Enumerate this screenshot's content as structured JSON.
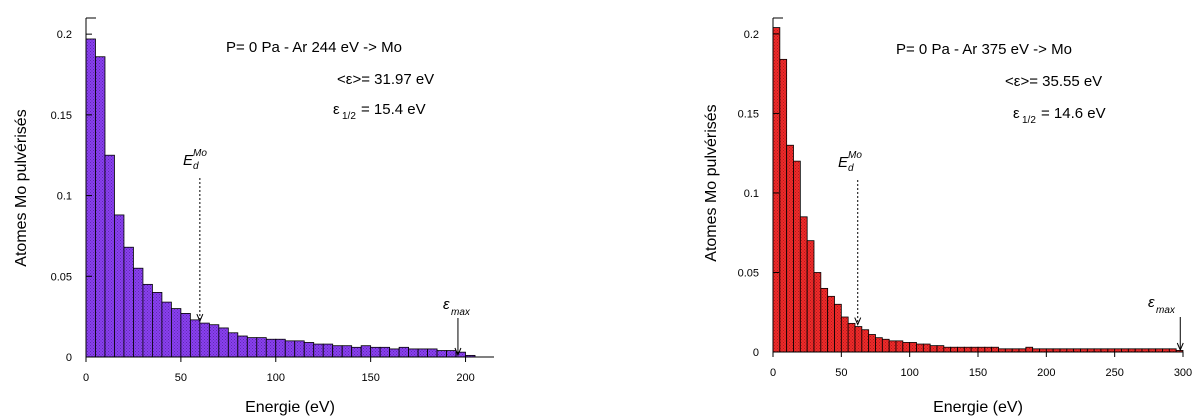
{
  "chart_data": [
    {
      "type": "bar",
      "color": "#8a3ff0",
      "hatch": "#3a1a7a",
      "xlabel": "Energie (eV)",
      "ylabel": "Atomes Mo pulvérisés",
      "xlim": [
        0,
        215
      ],
      "ylim": [
        0,
        0.21
      ],
      "xticks": [
        "0",
        "50",
        "100",
        "150",
        "200"
      ],
      "yticks": [
        "0",
        "0.05",
        "0.1",
        "0.15",
        "0.2"
      ],
      "bin_width": 5,
      "values": [
        0.197,
        0.186,
        0.125,
        0.088,
        0.068,
        0.055,
        0.045,
        0.04,
        0.034,
        0.03,
        0.027,
        0.023,
        0.021,
        0.02,
        0.018,
        0.015,
        0.013,
        0.012,
        0.012,
        0.011,
        0.011,
        0.01,
        0.01,
        0.009,
        0.008,
        0.008,
        0.007,
        0.007,
        0.006,
        0.007,
        0.006,
        0.006,
        0.005,
        0.006,
        0.005,
        0.005,
        0.005,
        0.004,
        0.004,
        0.003,
        0.001
      ],
      "annotations": {
        "title": "P= 0 Pa - Ar  244 eV -> Mo",
        "mean_label": "<ε>= 31.97 eV",
        "half_label_prefix": "ε",
        "half_label_sub": "1/2",
        "half_label_value": "= 15.4 eV",
        "ed_label": "E",
        "ed_sup": "Mo",
        "ed_sub": "d",
        "ed_x": 60,
        "emax_label": "ε",
        "emax_sub": "max",
        "emax_x": 196
      }
    },
    {
      "type": "bar",
      "color": "#ef2a2a",
      "hatch": "#7a0f0f",
      "xlabel": "Energie (eV)",
      "ylabel": "Atomes Mo pulvérisés",
      "xlim": [
        0,
        300
      ],
      "ylim": [
        0,
        0.21
      ],
      "xticks": [
        "0",
        "50",
        "100",
        "150",
        "200",
        "250",
        "300"
      ],
      "yticks": [
        "0",
        "0.05",
        "0.1",
        "0.15",
        "0.2"
      ],
      "bin_width": 5,
      "values": [
        0.204,
        0.184,
        0.13,
        0.12,
        0.085,
        0.07,
        0.05,
        0.04,
        0.035,
        0.03,
        0.022,
        0.018,
        0.016,
        0.014,
        0.011,
        0.009,
        0.008,
        0.007,
        0.007,
        0.006,
        0.006,
        0.005,
        0.005,
        0.004,
        0.004,
        0.003,
        0.003,
        0.003,
        0.003,
        0.003,
        0.003,
        0.003,
        0.003,
        0.002,
        0.002,
        0.002,
        0.002,
        0.003,
        0.002,
        0.002,
        0.002,
        0.002,
        0.002,
        0.002,
        0.002,
        0.002,
        0.002,
        0.002,
        0.002,
        0.002,
        0.002,
        0.002,
        0.002,
        0.002,
        0.002,
        0.002,
        0.002,
        0.002,
        0.002,
        0.001
      ],
      "annotations": {
        "title": "P= 0 Pa  - Ar  375 eV -> Mo",
        "mean_label": "<ε>= 35.55 eV",
        "half_label_prefix": "ε",
        "half_label_sub": "1/2",
        "half_label_value": "= 14.6 eV",
        "ed_label": "E",
        "ed_sup": "Mo",
        "ed_sub": "d",
        "ed_x": 62,
        "emax_label": "ε",
        "emax_sub": "max",
        "emax_x": 298
      }
    }
  ]
}
